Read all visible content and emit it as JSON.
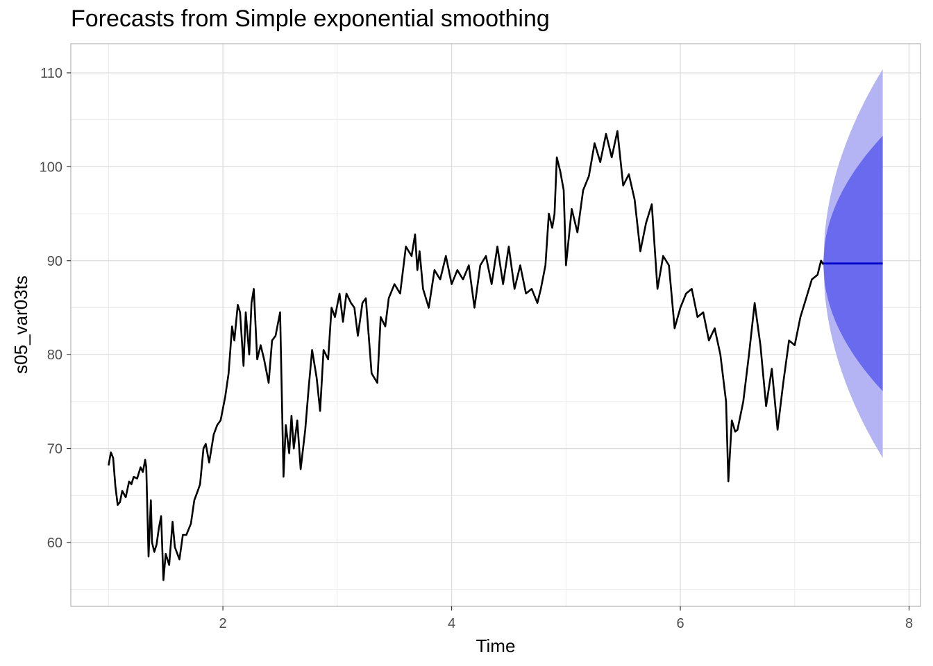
{
  "chart_data": {
    "type": "line",
    "title": "Forecasts from Simple exponential smoothing",
    "xlabel": "Time",
    "ylabel": "s05_var03ts",
    "xlim": [
      0.67,
      8.1
    ],
    "ylim": [
      53.2,
      113.1
    ],
    "x_ticks": [
      2,
      4,
      6,
      8
    ],
    "y_ticks": [
      60,
      70,
      80,
      90,
      100,
      110
    ],
    "grid": true,
    "legend": "none",
    "colors": {
      "observed": "#000000",
      "point_forecast": "#0000CC",
      "band_80": "#6A6AEE",
      "band_95": "#B4B4F4"
    },
    "series": [
      {
        "type": "line",
        "x": [
          1.0,
          1.02,
          1.04,
          1.06,
          1.08,
          1.1,
          1.12,
          1.15,
          1.18,
          1.2,
          1.22,
          1.25,
          1.28,
          1.3,
          1.32,
          1.33,
          1.35,
          1.37,
          1.38,
          1.4,
          1.42,
          1.44,
          1.46,
          1.48,
          1.5,
          1.53,
          1.56,
          1.58,
          1.62,
          1.65,
          1.68,
          1.72,
          1.75,
          1.78,
          1.8,
          1.83,
          1.85,
          1.88,
          1.92,
          1.95,
          1.98,
          2.02,
          2.05,
          2.08,
          2.1,
          2.13,
          2.15,
          2.18,
          2.2,
          2.23,
          2.25,
          2.27,
          2.3,
          2.33,
          2.36,
          2.4,
          2.43,
          2.46,
          2.5,
          2.53,
          2.55,
          2.58,
          2.6,
          2.62,
          2.65,
          2.68,
          2.72,
          2.75,
          2.78,
          2.82,
          2.85,
          2.88,
          2.92,
          2.95,
          2.98,
          3.02,
          3.05,
          3.08,
          3.12,
          3.15,
          3.18,
          3.22,
          3.25,
          3.3,
          3.35,
          3.38,
          3.42,
          3.45,
          3.5,
          3.55,
          3.6,
          3.65,
          3.68,
          3.7,
          3.72,
          3.75,
          3.8,
          3.85,
          3.9,
          3.95,
          4.0,
          4.05,
          4.1,
          4.15,
          4.2,
          4.25,
          4.3,
          4.35,
          4.4,
          4.45,
          4.5,
          4.55,
          4.6,
          4.65,
          4.7,
          4.75,
          4.78,
          4.82,
          4.85,
          4.88,
          4.9,
          4.92,
          4.95,
          4.98,
          5.0,
          5.05,
          5.1,
          5.15,
          5.2,
          5.25,
          5.3,
          5.35,
          5.4,
          5.45,
          5.5,
          5.55,
          5.6,
          5.65,
          5.7,
          5.75,
          5.8,
          5.85,
          5.9,
          5.95,
          6.0,
          6.05,
          6.1,
          6.15,
          6.2,
          6.25,
          6.3,
          6.35,
          6.4,
          6.42,
          6.45,
          6.48,
          6.5,
          6.55,
          6.6,
          6.65,
          6.7,
          6.75,
          6.8,
          6.85,
          6.9,
          6.95,
          7.0,
          7.05,
          7.1,
          7.15,
          7.2,
          7.23,
          7.25
        ],
        "y": [
          68.2,
          69.6,
          69.0,
          66.0,
          64.0,
          64.3,
          65.5,
          64.8,
          66.5,
          66.2,
          67.0,
          66.8,
          68.0,
          67.5,
          68.8,
          68.0,
          58.5,
          64.5,
          60.0,
          59.0,
          59.8,
          61.5,
          62.8,
          56.0,
          58.8,
          57.6,
          62.2,
          59.5,
          58.2,
          60.8,
          60.8,
          62.0,
          64.5,
          65.5,
          66.2,
          70.0,
          70.5,
          68.5,
          71.5,
          72.5,
          73.0,
          75.5,
          78.0,
          83.0,
          81.5,
          85.3,
          84.5,
          78.8,
          84.5,
          80.0,
          85.5,
          87.0,
          79.5,
          81.0,
          79.5,
          77.0,
          81.5,
          82.0,
          84.5,
          67.0,
          72.5,
          69.5,
          73.5,
          70.0,
          73.0,
          67.8,
          72.0,
          76.5,
          80.5,
          77.5,
          74.0,
          80.5,
          79.5,
          85.0,
          84.0,
          86.5,
          83.5,
          86.5,
          85.5,
          85.0,
          82.0,
          85.5,
          86.0,
          78.0,
          77.0,
          84.0,
          83.0,
          86.0,
          87.5,
          86.5,
          91.5,
          90.5,
          92.8,
          89.0,
          91.0,
          87.0,
          85.0,
          89.0,
          88.0,
          90.5,
          87.5,
          89.0,
          88.0,
          89.5,
          85.0,
          89.5,
          90.5,
          87.5,
          91.5,
          87.5,
          91.5,
          87.0,
          89.5,
          86.5,
          87.0,
          85.5,
          87.0,
          89.5,
          95.0,
          93.5,
          95.0,
          101.0,
          99.5,
          97.5,
          89.5,
          95.5,
          93.0,
          97.5,
          99.0,
          102.5,
          100.5,
          103.5,
          101.0,
          103.8,
          98.0,
          99.2,
          96.5,
          91.0,
          94.0,
          96.0,
          87.0,
          90.5,
          89.5,
          82.8,
          85.0,
          86.5,
          87.0,
          84.0,
          84.5,
          81.5,
          82.8,
          80.0,
          75.0,
          66.5,
          73.0,
          71.8,
          72.0,
          75.0,
          80.0,
          85.5,
          81.0,
          74.5,
          78.5,
          72.0,
          77.0,
          81.5,
          81.0,
          84.0,
          86.0,
          88.0,
          88.5,
          90.0,
          89.6
        ]
      },
      {
        "name": "Point forecast",
        "type": "line",
        "x": [
          7.25,
          7.77
        ],
        "y": [
          89.7,
          89.7
        ]
      }
    ],
    "forecast_band": {
      "x_start": 7.25,
      "x_end": 7.77,
      "center": 89.7,
      "half_width_80_end": 13.6,
      "half_width_95_end": 20.7
    }
  }
}
